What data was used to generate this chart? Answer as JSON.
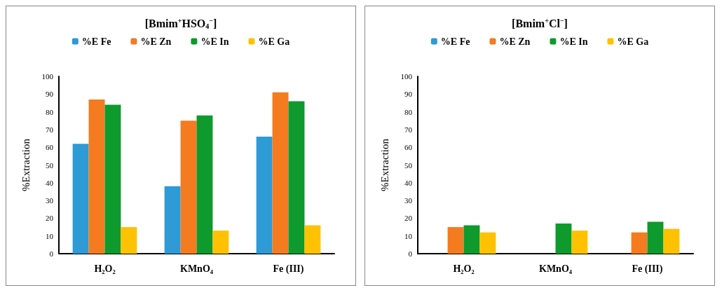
{
  "chart_data": [
    {
      "type": "bar",
      "title": "[Bmim$^{+}$HSO$_{4}$$^{−}$]",
      "ylabel": "%Extraction",
      "categories": [
        "H₂O₂",
        "KMnO₄",
        "Fe (III)"
      ],
      "series": [
        {
          "name": "%E Fe",
          "color": "#2e9ad6",
          "values": [
            62,
            38,
            66
          ]
        },
        {
          "name": "%E Zn",
          "color": "#f47b20",
          "values": [
            87,
            75,
            91
          ]
        },
        {
          "name": "%E In",
          "color": "#0e9a2c",
          "values": [
            84,
            78,
            86
          ]
        },
        {
          "name": "%E Ga",
          "color": "#fec200",
          "values": [
            15,
            13,
            16
          ]
        }
      ],
      "ylim": [
        0,
        100
      ],
      "yticks": [
        0,
        10,
        20,
        30,
        40,
        50,
        60,
        70,
        80,
        90,
        100
      ],
      "grid": false,
      "legend": "top"
    },
    {
      "type": "bar",
      "title": "[Bmim$^{+}$Cl$^{−}$]",
      "ylabel": "%Extraction",
      "categories": [
        "H₂O₂",
        "KMnO₄",
        "Fe (III)"
      ],
      "series": [
        {
          "name": "%E Fe",
          "color": "#2e9ad6",
          "values": [
            0,
            0,
            0
          ]
        },
        {
          "name": "%E Zn",
          "color": "#f47b20",
          "values": [
            15,
            0,
            12
          ]
        },
        {
          "name": "%E In",
          "color": "#0e9a2c",
          "values": [
            16,
            17,
            18
          ]
        },
        {
          "name": "%E Ga",
          "color": "#fec200",
          "values": [
            12,
            13,
            14
          ]
        }
      ],
      "ylim": [
        0,
        100
      ],
      "yticks": [
        0,
        10,
        20,
        30,
        40,
        50,
        60,
        70,
        80,
        90,
        100
      ],
      "grid": false,
      "legend": "top"
    }
  ]
}
